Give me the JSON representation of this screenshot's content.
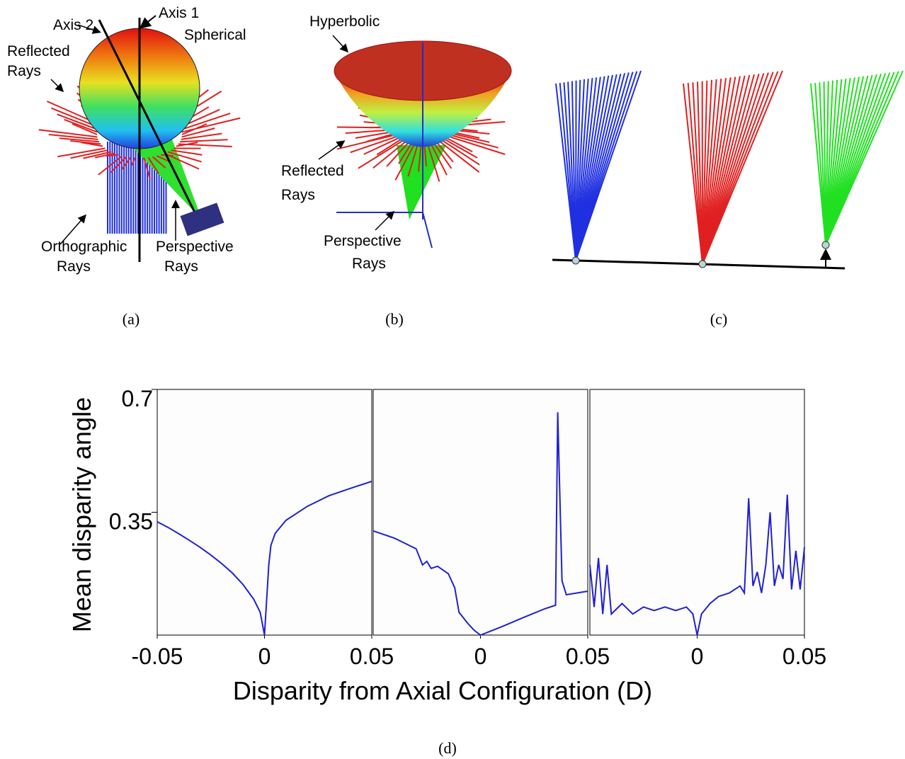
{
  "figure_a": {
    "caption": "(a)",
    "labels": [
      "Axis 2",
      "Axis 1",
      "Spherical",
      "Reflected",
      "Rays",
      "Orthographic",
      "Rays",
      "Perspective",
      "Rays"
    ]
  },
  "figure_b": {
    "caption": "(b)",
    "labels": [
      "Hyperbolic",
      "Reflected",
      "Rays",
      "Perspective",
      "Rays"
    ]
  },
  "figure_c": {
    "caption": "(c)"
  },
  "figure_d": {
    "caption": "(d)",
    "y_label": "Mean disparity angle",
    "x_label": "Disparity from Axial Configuration (D)"
  },
  "chart_data": [
    {
      "type": "line",
      "color": "#2020d0",
      "xlim": [
        -0.05,
        0.05
      ],
      "ylim": [
        0,
        0.7
      ],
      "xticks": [
        -0.05,
        0,
        0.05
      ],
      "yticks": [
        0.35,
        0.7
      ],
      "x": [
        -0.05,
        -0.045,
        -0.04,
        -0.035,
        -0.03,
        -0.025,
        -0.02,
        -0.015,
        -0.01,
        -0.005,
        -0.002,
        0,
        0.002,
        0.003,
        0.005,
        0.01,
        0.02,
        0.03,
        0.04,
        0.05
      ],
      "values": [
        0.323,
        0.307,
        0.289,
        0.27,
        0.25,
        0.228,
        0.204,
        0.177,
        0.144,
        0.102,
        0.065,
        0,
        0.2,
        0.256,
        0.29,
        0.327,
        0.367,
        0.397,
        0.418,
        0.438
      ]
    },
    {
      "type": "line",
      "color": "#2020d0",
      "xlim": [
        -0.05,
        0.05
      ],
      "ylim": [
        0,
        0.7
      ],
      "xticks": [
        0,
        0.05
      ],
      "yticks": [],
      "x": [
        -0.05,
        -0.04,
        -0.03,
        -0.027,
        -0.025,
        -0.023,
        -0.02,
        -0.015,
        -0.012,
        -0.01,
        -0.006,
        -0.003,
        0,
        0.01,
        0.02,
        0.03,
        0.035,
        0.036,
        0.038,
        0.04,
        0.05
      ],
      "values": [
        0.297,
        0.276,
        0.246,
        0.2,
        0.21,
        0.19,
        0.196,
        0.175,
        0.135,
        0.065,
        0.034,
        0.014,
        0,
        0.024,
        0.05,
        0.075,
        0.085,
        0.635,
        0.155,
        0.115,
        0.125
      ]
    },
    {
      "type": "line",
      "color": "#2020d0",
      "xlim": [
        -0.05,
        0.05
      ],
      "ylim": [
        0,
        0.7
      ],
      "xticks": [
        0,
        0.05
      ],
      "yticks": [],
      "x": [
        -0.05,
        -0.048,
        -0.046,
        -0.044,
        -0.042,
        -0.04,
        -0.035,
        -0.03,
        -0.025,
        -0.02,
        -0.015,
        -0.01,
        -0.005,
        -0.002,
        0,
        0.002,
        0.006,
        0.01,
        0.015,
        0.02,
        0.022,
        0.024,
        0.026,
        0.028,
        0.03,
        0.032,
        0.034,
        0.036,
        0.038,
        0.04,
        0.042,
        0.044,
        0.046,
        0.048,
        0.05
      ],
      "values": [
        0.2,
        0.08,
        0.22,
        0.06,
        0.2,
        0.06,
        0.09,
        0.06,
        0.08,
        0.07,
        0.08,
        0.07,
        0.08,
        0.06,
        0,
        0.06,
        0.09,
        0.11,
        0.12,
        0.14,
        0.12,
        0.39,
        0.14,
        0.18,
        0.12,
        0.2,
        0.35,
        0.14,
        0.2,
        0.16,
        0.4,
        0.13,
        0.24,
        0.13,
        0.25
      ]
    }
  ]
}
